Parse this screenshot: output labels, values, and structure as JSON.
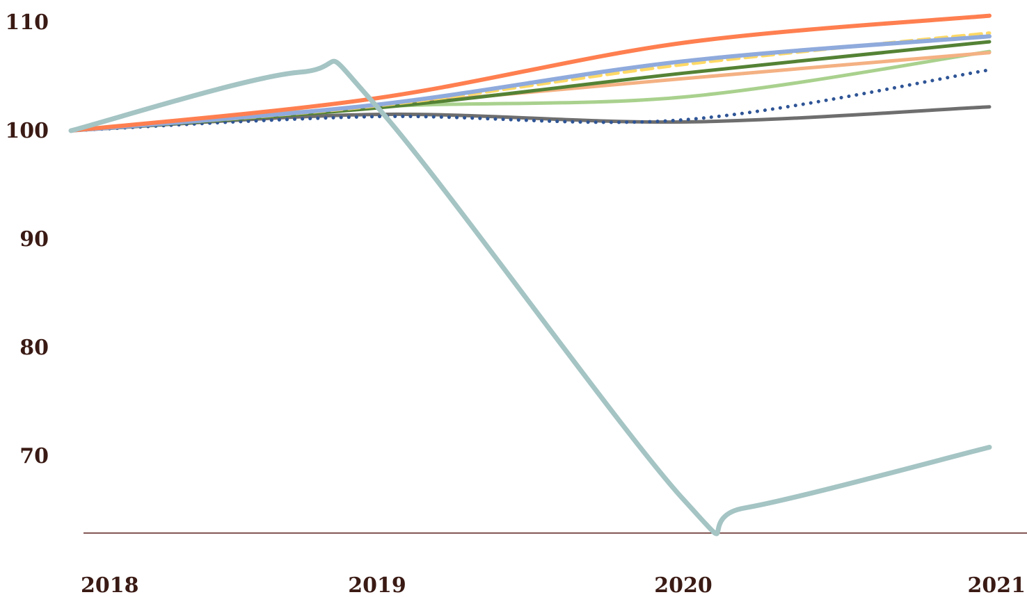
{
  "chart_data": {
    "type": "line",
    "title": "",
    "xlabel": "",
    "ylabel": "",
    "x": [
      2018,
      2019,
      2020,
      2021
    ],
    "x_tick_labels": [
      "2018",
      "2019",
      "2020",
      "2021"
    ],
    "y_ticks": [
      70,
      80,
      90,
      100,
      110
    ],
    "y_tick_labels": [
      "70",
      "80",
      "90",
      "100",
      "110"
    ],
    "ylim": [
      62.5,
      111.5
    ],
    "grid": false,
    "legend": "none",
    "series": [
      {
        "values": [
          100,
          101.5,
          100.8,
          102.2
        ],
        "color": "#6e6e6e",
        "style": "solid"
      },
      {
        "values": [
          100,
          101.3,
          101.0,
          105.6
        ],
        "color": "#2f5596",
        "style": "dotted"
      },
      {
        "values": [
          100,
          102.2,
          103.1,
          107.3
        ],
        "color": "#a9d18e",
        "style": "solid"
      },
      {
        "values": [
          100,
          102.3,
          104.8,
          107.2
        ],
        "color": "#f4b183",
        "style": "solid"
      },
      {
        "values": [
          100,
          102.1,
          105.3,
          108.2
        ],
        "color": "#548235",
        "style": "solid"
      },
      {
        "values": [
          100,
          102.3,
          106.1,
          109.0
        ],
        "color": "#ffd966",
        "style": "dashed"
      },
      {
        "values": [
          100,
          102.4,
          106.4,
          108.7
        ],
        "color": "#8faadc",
        "style": "solid"
      },
      {
        "values": [
          100,
          103.0,
          108.1,
          110.6
        ],
        "color": "#ff7f50",
        "style": "solid"
      },
      {
        "values": [
          100,
          102.2,
          66.0,
          70.8
        ],
        "peak": [
          2018.75,
          105.4
        ],
        "trough": [
          2020.2,
          65.2
        ],
        "color": "#a5c4c4",
        "style": "solid"
      }
    ]
  }
}
